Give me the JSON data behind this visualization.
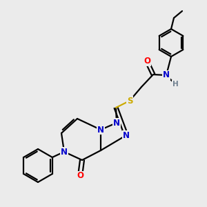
{
  "background_color": "#ebebeb",
  "atom_colors": {
    "C": "#000000",
    "N": "#0000cc",
    "O": "#ff0000",
    "S": "#ccaa00",
    "H": "#708090"
  },
  "figsize": [
    3.0,
    3.0
  ],
  "dpi": 100
}
